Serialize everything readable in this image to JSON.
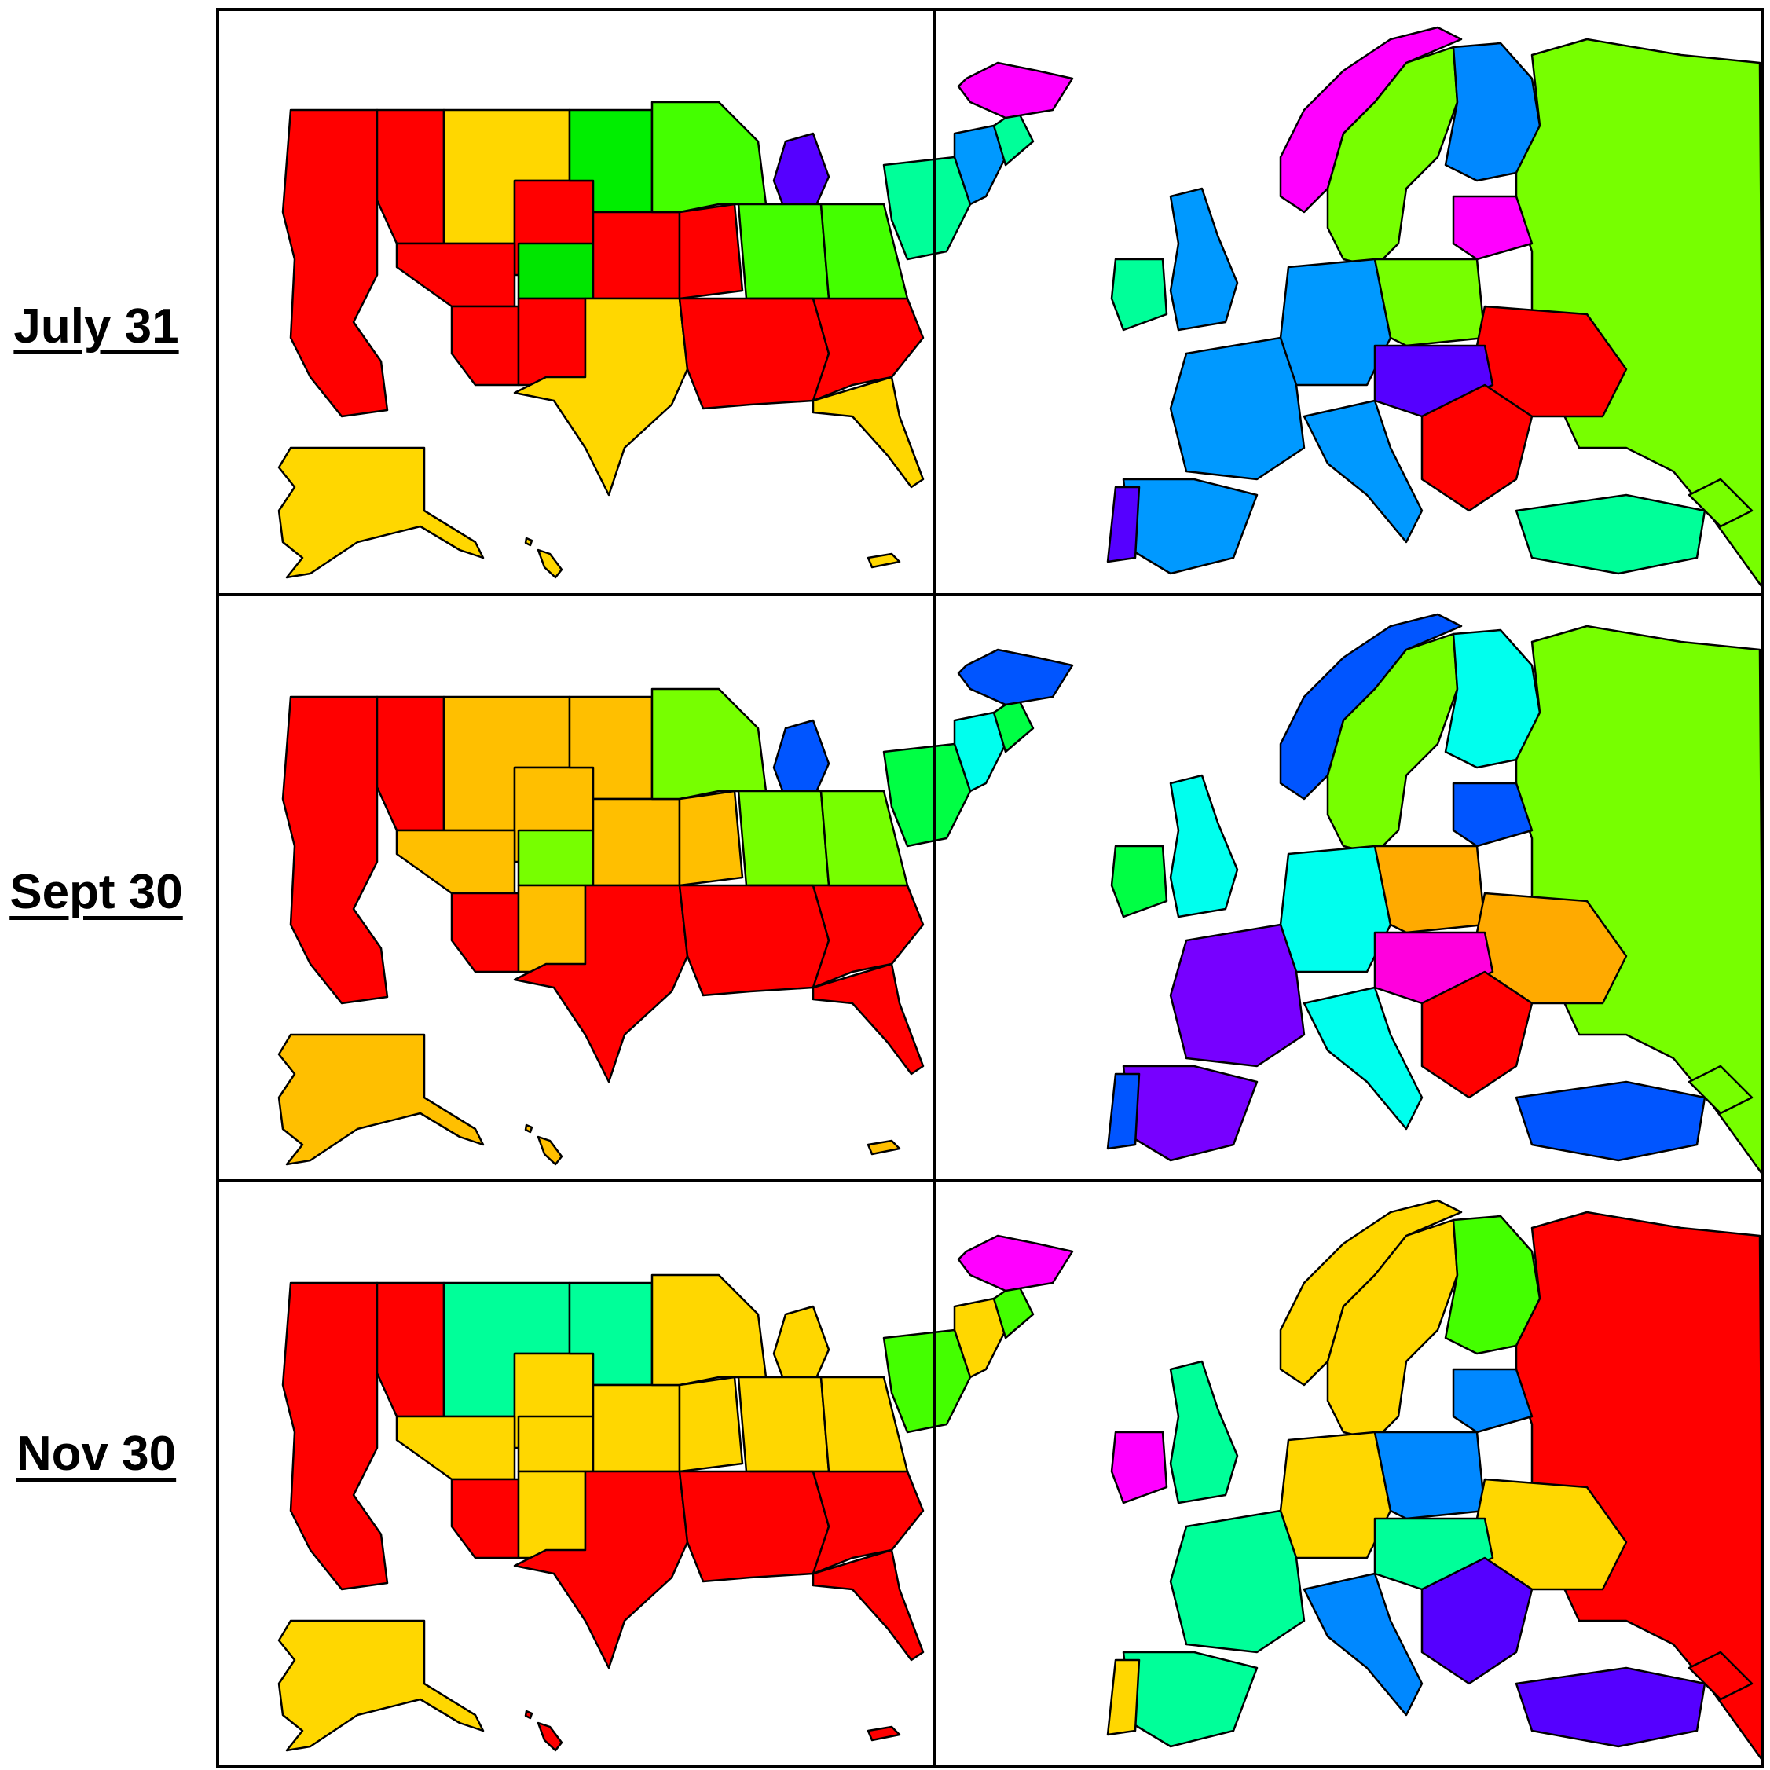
{
  "rows": [
    {
      "label": "July 31",
      "us_colors": {
        "west": "#ff0000",
        "mountain_n": "#ffd700",
        "mountain_mid": "#ff0000",
        "colorado": "#00e600",
        "plains_n": "#00ee00",
        "plains_mid": "#ff0000",
        "texas": "#ffd700",
        "south": "#ff0000",
        "florida": "#ffd700",
        "midwest": "#44ff00",
        "michigan": "#5500ff",
        "northeast": "#00ff99",
        "new_england": "#0099ff",
        "alaska": "#ffd700",
        "hawaii": "#ffd700"
      },
      "eu_colors": {
        "iceland": "#ff00ff",
        "norway": "#ff00ff",
        "sweden": "#77ff00",
        "finland": "#0088ff",
        "russia": "#77ff00",
        "uk": "#0099ff",
        "ireland": "#00ff99",
        "france": "#0099ff",
        "spain": "#0099ff",
        "portugal": "#5500ff",
        "germany": "#0099ff",
        "poland": "#77ff00",
        "central": "#5500ff",
        "italy": "#0099ff",
        "balkans": "#ff0000",
        "ukraine": "#ff0000",
        "turkey": "#00ff99",
        "baltics": "#ff00ff"
      }
    },
    {
      "label": "Sept 30",
      "us_colors": {
        "west": "#ff0000",
        "mountain_n": "#ffbf00",
        "mountain_mid": "#ffbf00",
        "colorado": "#77ff00",
        "plains_n": "#ffbf00",
        "plains_mid": "#ffbf00",
        "texas": "#ff0000",
        "south": "#ff0000",
        "florida": "#ff0000",
        "midwest": "#77ff00",
        "michigan": "#0055ff",
        "northeast": "#00ff44",
        "new_england": "#00ffee",
        "alaska": "#ffbf00",
        "hawaii": "#ffbf00"
      },
      "eu_colors": {
        "iceland": "#0055ff",
        "norway": "#0055ff",
        "sweden": "#77ff00",
        "finland": "#00ffee",
        "russia": "#77ff00",
        "uk": "#00ffee",
        "ireland": "#00ff44",
        "france": "#7700ff",
        "spain": "#7700ff",
        "portugal": "#0055ff",
        "germany": "#00ffee",
        "poland": "#ffaa00",
        "central": "#ff00dd",
        "italy": "#00ffee",
        "balkans": "#ff0000",
        "ukraine": "#ffaa00",
        "turkey": "#0055ff",
        "baltics": "#0055ff"
      }
    },
    {
      "label": "Nov 30",
      "us_colors": {
        "west": "#ff0000",
        "mountain_n": "#00ff99",
        "mountain_mid": "#ffd700",
        "colorado": "#ffd700",
        "plains_n": "#00ff99",
        "plains_mid": "#ffd700",
        "texas": "#ff0000",
        "south": "#ff0000",
        "florida": "#ff0000",
        "midwest": "#ffd700",
        "michigan": "#ffd700",
        "northeast": "#44ff00",
        "new_england": "#ffd700",
        "alaska": "#ffd700",
        "hawaii": "#ff0000"
      },
      "eu_colors": {
        "iceland": "#ff00ff",
        "norway": "#ffd700",
        "sweden": "#ffd700",
        "finland": "#44ff00",
        "russia": "#ff0000",
        "uk": "#00ff99",
        "ireland": "#ff00ff",
        "france": "#00ff99",
        "spain": "#00ff99",
        "portugal": "#ffd700",
        "germany": "#ffd700",
        "poland": "#0088ff",
        "central": "#00ff99",
        "italy": "#0088ff",
        "balkans": "#5500ff",
        "ukraine": "#ffd700",
        "turkey": "#5500ff",
        "baltics": "#0088ff"
      }
    }
  ]
}
